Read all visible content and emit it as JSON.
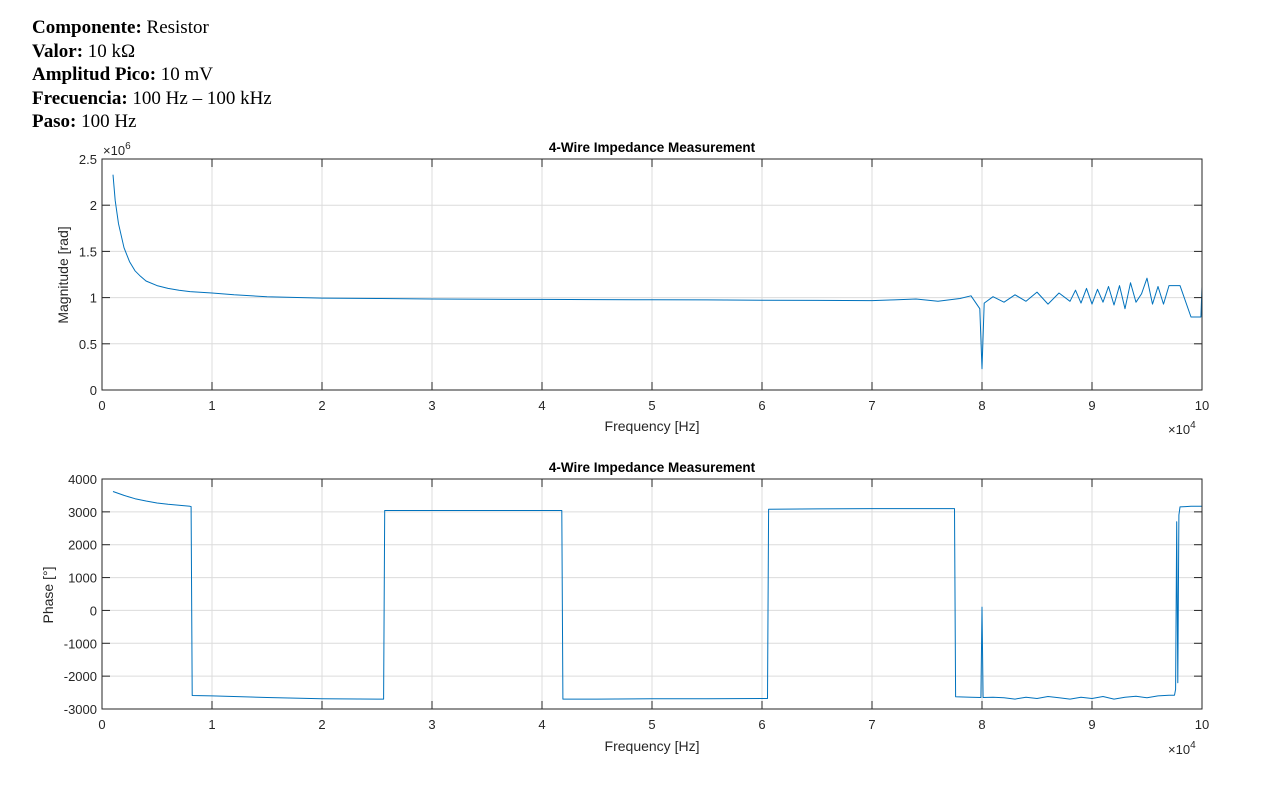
{
  "header": {
    "items": [
      {
        "label": "Componente:",
        "value": "Resistor"
      },
      {
        "label": "Valor:",
        "value": "10 kΩ"
      },
      {
        "label": "Amplitud Pico:",
        "value": "10 mV"
      },
      {
        "label": "Frecuencia:",
        "value": "100 Hz – 100 kHz"
      },
      {
        "label": "Paso:",
        "value": "100 Hz"
      }
    ]
  },
  "colors": {
    "series": "#0072BD",
    "grid": "#dcdcdc",
    "axis": "#262626"
  },
  "chart_data": [
    {
      "type": "line",
      "title": "4-Wire Impedance Measurement",
      "xlabel": "Frequency [Hz]",
      "ylabel": "Magnitude [rad]",
      "xlim": [
        0,
        100000
      ],
      "ylim": [
        0,
        2500000
      ],
      "x_exponent_label": "×10",
      "x_exponent": "4",
      "y_exponent_label": "×10",
      "y_exponent": "6",
      "xticks": [
        0,
        10000,
        20000,
        30000,
        40000,
        50000,
        60000,
        70000,
        80000,
        90000,
        100000
      ],
      "xtick_labels": [
        "0",
        "1",
        "2",
        "3",
        "4",
        "5",
        "6",
        "7",
        "8",
        "9",
        "10"
      ],
      "yticks": [
        0,
        500000,
        1000000,
        1500000,
        2000000,
        2500000
      ],
      "ytick_labels": [
        "0",
        "0.5",
        "1",
        "1.5",
        "2",
        "2.5"
      ],
      "grid": true,
      "series": [
        {
          "x": [
            1000,
            1200,
            1500,
            2000,
            2500,
            3000,
            3500,
            4000,
            5000,
            6000,
            7000,
            8000,
            10000,
            12000,
            15000,
            20000,
            25000,
            30000,
            35000,
            40000,
            45000,
            50000,
            55000,
            60000,
            65000,
            70000,
            72000,
            74000,
            76000,
            78000,
            79000,
            79800,
            80000,
            80200,
            81000,
            82000,
            83000,
            84000,
            85000,
            86000,
            87000,
            88000,
            88500,
            89000,
            89500,
            90000,
            90500,
            91000,
            91500,
            92000,
            92500,
            93000,
            93500,
            94000,
            94500,
            95000,
            95500,
            96000,
            96500,
            97000,
            98000,
            99000,
            99900,
            100000
          ],
          "values": [
            2330000,
            2050000,
            1800000,
            1540000,
            1390000,
            1290000,
            1230000,
            1180000,
            1130000,
            1100000,
            1080000,
            1065000,
            1050000,
            1030000,
            1010000,
            995000,
            990000,
            985000,
            982000,
            980000,
            978000,
            976000,
            975000,
            972000,
            970000,
            968000,
            975000,
            985000,
            960000,
            990000,
            1020000,
            880000,
            230000,
            940000,
            1010000,
            950000,
            1030000,
            960000,
            1060000,
            930000,
            1050000,
            960000,
            1080000,
            940000,
            1100000,
            930000,
            1090000,
            950000,
            1120000,
            920000,
            1130000,
            880000,
            1160000,
            950000,
            1040000,
            1210000,
            930000,
            1120000,
            930000,
            1130000,
            1130000,
            790000,
            790000,
            1120000
          ]
        }
      ]
    },
    {
      "type": "line",
      "title": "4-Wire Impedance Measurement",
      "xlabel": "Frequency [Hz]",
      "ylabel": "Phase [°]",
      "xlim": [
        0,
        100000
      ],
      "ylim": [
        -3000,
        4000
      ],
      "x_exponent_label": "×10",
      "x_exponent": "4",
      "xticks": [
        0,
        10000,
        20000,
        30000,
        40000,
        50000,
        60000,
        70000,
        80000,
        90000,
        100000
      ],
      "xtick_labels": [
        "0",
        "1",
        "2",
        "3",
        "4",
        "5",
        "6",
        "7",
        "8",
        "9",
        "10"
      ],
      "yticks": [
        -3000,
        -2000,
        -1000,
        0,
        1000,
        2000,
        3000,
        4000
      ],
      "ytick_labels": [
        "-3000",
        "-2000",
        "-1000",
        "0",
        "1000",
        "2000",
        "3000",
        "4000"
      ],
      "grid": true,
      "series": [
        {
          "x": [
            1000,
            2000,
            3000,
            4000,
            5000,
            6000,
            7000,
            8000,
            8100,
            8200,
            10000,
            15000,
            20000,
            25000,
            25600,
            25700,
            26000,
            30000,
            35000,
            40000,
            41800,
            41900,
            45000,
            50000,
            55000,
            60000,
            60500,
            60600,
            65000,
            70000,
            75000,
            77500,
            77600,
            79000,
            79900,
            80000,
            80100,
            81000,
            82000,
            83000,
            84000,
            85000,
            86000,
            87000,
            88000,
            89000,
            90000,
            91000,
            92000,
            93000,
            94000,
            95000,
            96000,
            97000,
            97500,
            97600,
            97700,
            97800,
            97900,
            98000,
            98500,
            99000,
            100000
          ],
          "values": [
            3620,
            3500,
            3400,
            3330,
            3270,
            3230,
            3200,
            3170,
            3160,
            -2590,
            -2600,
            -2650,
            -2690,
            -2700,
            -2700,
            3040,
            3040,
            3040,
            3040,
            3040,
            3040,
            -2700,
            -2700,
            -2690,
            -2690,
            -2680,
            -2680,
            3080,
            3090,
            3100,
            3100,
            3100,
            -2630,
            -2640,
            -2650,
            100,
            -2650,
            -2640,
            -2660,
            -2700,
            -2640,
            -2680,
            -2620,
            -2660,
            -2700,
            -2640,
            -2680,
            -2620,
            -2700,
            -2640,
            -2610,
            -2660,
            -2600,
            -2580,
            -2580,
            -2400,
            2700,
            -2200,
            2900,
            3150,
            3160,
            3170,
            3170
          ]
        }
      ]
    }
  ]
}
